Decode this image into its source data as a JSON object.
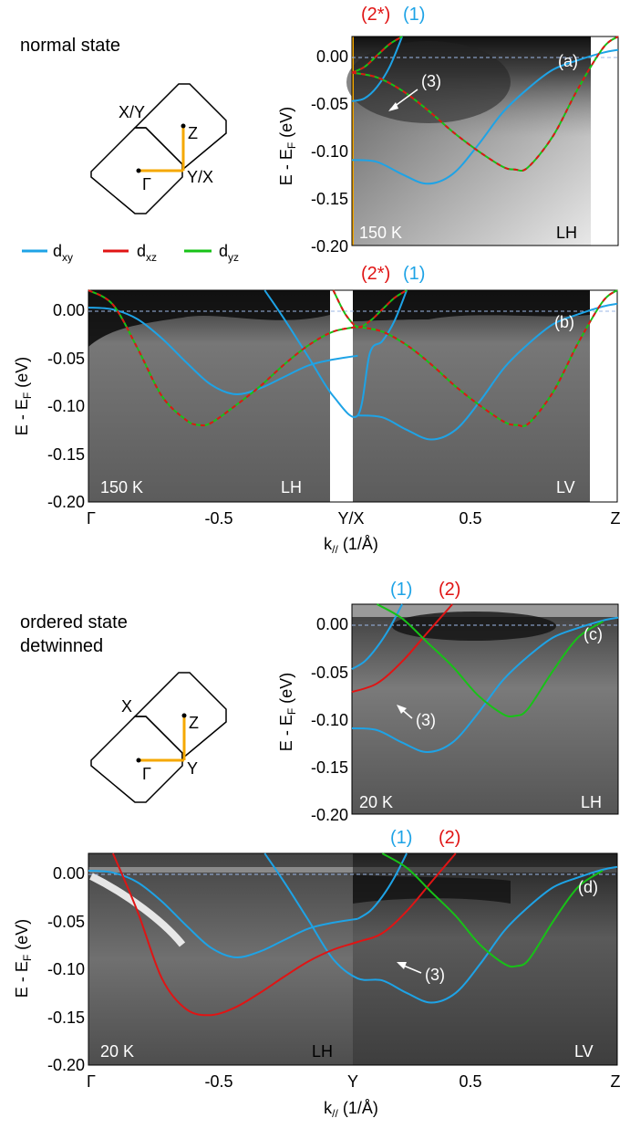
{
  "figure": {
    "normal_title": "normal state",
    "ordered_title_1": "ordered state",
    "ordered_title_2": "detwinned",
    "colors": {
      "dxy": "#1ea3e6",
      "dxz": "#e01414",
      "dyz": "#17c217",
      "fermi": "#9bb7e6",
      "bz_path": "#f5a800"
    },
    "legend": [
      {
        "label": "d",
        "sub": "xy",
        "color": "#1ea3e6"
      },
      {
        "label": "d",
        "sub": "xz",
        "color": "#e01414"
      },
      {
        "label": "d",
        "sub": "yz",
        "color": "#17c217"
      }
    ],
    "bz_normal": {
      "corner": "X/Y",
      "center": "Γ",
      "edge": "Y/X",
      "top": "Z"
    },
    "bz_ordered": {
      "corner": "X",
      "center": "Γ",
      "edge": "Y",
      "top": "Z"
    }
  },
  "chart_data": [
    {
      "id": "a",
      "type": "line",
      "panel_label": "(a)",
      "temperature": "150 K",
      "polarization": "LH",
      "ylabel": "E - E_F (eV)",
      "ylim": [
        -0.2,
        0.02
      ],
      "y_ticks": [
        "0.00",
        "-0.05",
        "-0.10",
        "-0.15",
        "-0.20"
      ],
      "xlim": [
        0,
        1.06
      ],
      "band_labels": [
        {
          "text": "(2*)",
          "color": "#e01414"
        },
        {
          "text": "(1)",
          "color": "#1ea3e6"
        }
      ],
      "annotation": "(3)",
      "series": [
        {
          "name": "dxy",
          "x": [
            0,
            0.05,
            0.1,
            0.15,
            0.2
          ],
          "y": [
            -0.048,
            -0.045,
            -0.033,
            -0.012,
            0.02
          ]
        },
        {
          "name": "dxy",
          "x": [
            0,
            0.1,
            0.2,
            0.3,
            0.4,
            0.5,
            0.6,
            0.7,
            0.8,
            0.9,
            1.0,
            1.06
          ],
          "y": [
            -0.11,
            -0.112,
            -0.125,
            -0.135,
            -0.125,
            -0.095,
            -0.06,
            -0.035,
            -0.015,
            -0.005,
            0.003,
            0.006
          ]
        },
        {
          "name": "dxz/dyz",
          "x": [
            0,
            0.1,
            0.2,
            0.3,
            0.4,
            0.5,
            0.6,
            0.65,
            0.7,
            0.8,
            0.9,
            1.0,
            1.06
          ],
          "y": [
            -0.018,
            -0.023,
            -0.037,
            -0.057,
            -0.08,
            -0.1,
            -0.117,
            -0.12,
            -0.118,
            -0.085,
            -0.035,
            0.008,
            0.02
          ]
        },
        {
          "name": "dxz/dyz",
          "x": [
            0,
            0.05,
            0.1,
            0.15,
            0.2
          ],
          "y": [
            -0.018,
            -0.012,
            0.0,
            0.012,
            0.02
          ]
        }
      ]
    },
    {
      "id": "b",
      "type": "line",
      "panel_label": "(b)",
      "temperature": "150 K",
      "polarization_left": "LH",
      "polarization_right": "LV",
      "ylabel": "E - E_F (eV)",
      "xlabel": "k// (1/Å)",
      "xlim": [
        -1.1,
        1.06
      ],
      "ylim": [
        -0.2,
        0.02
      ],
      "y_ticks": [
        "0.00",
        "-0.05",
        "-0.10",
        "-0.15",
        "-0.20"
      ],
      "x_ticks": [
        "Γ",
        "-0.5",
        "Y/X",
        "0.5",
        "Z"
      ],
      "band_labels": [
        {
          "text": "(2*)",
          "color": "#e01414"
        },
        {
          "text": "(1)",
          "color": "#1ea3e6"
        }
      ],
      "series": [
        {
          "name": "dxy",
          "x": [
            -1.1,
            -1.0,
            -0.9,
            -0.8,
            -0.7,
            -0.6,
            -0.5,
            -0.4,
            -0.3,
            -0.2,
            -0.1,
            0.0
          ],
          "y": [
            0.002,
            0.0,
            -0.01,
            -0.03,
            -0.055,
            -0.078,
            -0.088,
            -0.082,
            -0.07,
            -0.058,
            -0.052,
            -0.048
          ]
        },
        {
          "name": "dxy",
          "x": [
            0.0,
            0.1,
            0.2,
            0.3,
            0.4,
            0.5,
            0.6,
            0.7,
            0.8,
            0.9,
            1.0,
            1.06
          ],
          "y": [
            -0.11,
            -0.112,
            -0.125,
            -0.135,
            -0.125,
            -0.095,
            -0.06,
            -0.035,
            -0.015,
            -0.005,
            0.003,
            0.006
          ]
        },
        {
          "name": "dxy",
          "x": [
            -0.38,
            -0.3,
            -0.2,
            -0.1,
            0.0,
            0.05,
            0.1,
            0.15,
            0.2
          ],
          "y": [
            0.02,
            -0.01,
            -0.05,
            -0.09,
            -0.11,
            -0.045,
            -0.033,
            -0.012,
            0.02
          ]
        },
        {
          "name": "dxz/dyz",
          "x": [
            -1.1,
            -1.0,
            -0.9,
            -0.8,
            -0.7,
            -0.65,
            -0.6,
            -0.5,
            -0.4,
            -0.3,
            -0.2,
            -0.1,
            0.0
          ],
          "y": [
            0.02,
            0.005,
            -0.04,
            -0.09,
            -0.115,
            -0.12,
            -0.118,
            -0.1,
            -0.08,
            -0.057,
            -0.037,
            -0.023,
            -0.018
          ]
        },
        {
          "name": "dxz/dyz",
          "x": [
            0.0,
            0.1,
            0.2,
            0.3,
            0.4,
            0.5,
            0.6,
            0.65,
            0.7,
            0.8,
            0.9,
            1.0,
            1.06
          ],
          "y": [
            -0.018,
            -0.023,
            -0.037,
            -0.057,
            -0.08,
            -0.1,
            -0.117,
            -0.12,
            -0.118,
            -0.085,
            -0.035,
            0.008,
            0.02
          ]
        },
        {
          "name": "dxz/dyz",
          "x": [
            -0.1,
            -0.05,
            0.0,
            0.05,
            0.1,
            0.15,
            0.2
          ],
          "y": [
            0.02,
            -0.005,
            -0.018,
            -0.012,
            0.0,
            0.012,
            0.02
          ]
        }
      ]
    },
    {
      "id": "c",
      "type": "line",
      "panel_label": "(c)",
      "temperature": "20 K",
      "polarization": "LH",
      "ylabel": "E - E_F (eV)",
      "xlim": [
        0,
        1.06
      ],
      "ylim": [
        -0.2,
        0.02
      ],
      "y_ticks": [
        "0.00",
        "-0.05",
        "-0.10",
        "-0.15",
        "-0.20"
      ],
      "band_labels": [
        {
          "text": "(1)",
          "color": "#1ea3e6"
        },
        {
          "text": "(2)",
          "color": "#e01414"
        }
      ],
      "annotation": "(3)",
      "series": [
        {
          "name": "dxy",
          "x": [
            0,
            0.05,
            0.1,
            0.15,
            0.2
          ],
          "y": [
            -0.048,
            -0.04,
            -0.025,
            -0.005,
            0.02
          ]
        },
        {
          "name": "dxy",
          "x": [
            0,
            0.1,
            0.2,
            0.3,
            0.4,
            0.5,
            0.6,
            0.7,
            0.8,
            0.9,
            1.0,
            1.06
          ],
          "y": [
            -0.11,
            -0.112,
            -0.125,
            -0.135,
            -0.125,
            -0.095,
            -0.06,
            -0.035,
            -0.015,
            -0.005,
            0.003,
            0.006
          ]
        },
        {
          "name": "dxz",
          "x": [
            0,
            0.1,
            0.2,
            0.3,
            0.4
          ],
          "y": [
            -0.072,
            -0.063,
            -0.04,
            -0.01,
            0.02
          ]
        },
        {
          "name": "dyz",
          "x": [
            0.1,
            0.2,
            0.3,
            0.4,
            0.5,
            0.6,
            0.65,
            0.7,
            0.8,
            0.9,
            1.0
          ],
          "y": [
            0.02,
            0.005,
            -0.02,
            -0.045,
            -0.075,
            -0.095,
            -0.097,
            -0.09,
            -0.05,
            -0.015,
            0.002
          ]
        }
      ]
    },
    {
      "id": "d",
      "type": "line",
      "panel_label": "(d)",
      "temperature": "20 K",
      "polarization_left": "LH",
      "polarization_right": "LV",
      "ylabel": "E - E_F (eV)",
      "xlabel": "k// (1/Å)",
      "xlim": [
        -1.1,
        1.06
      ],
      "ylim": [
        -0.2,
        0.02
      ],
      "y_ticks": [
        "0.00",
        "-0.05",
        "-0.10",
        "-0.15",
        "-0.20"
      ],
      "x_ticks": [
        "Γ",
        "-0.5",
        "Y",
        "0.5",
        "Z"
      ],
      "band_labels": [
        {
          "text": "(1)",
          "color": "#1ea3e6"
        },
        {
          "text": "(2)",
          "color": "#e01414"
        }
      ],
      "annotation": "(3)",
      "series": [
        {
          "name": "dxy",
          "x": [
            -1.1,
            -1.0,
            -0.9,
            -0.8,
            -0.7,
            -0.6,
            -0.5,
            -0.4,
            -0.3,
            -0.2,
            -0.1,
            0.0
          ],
          "y": [
            0.002,
            0.0,
            -0.01,
            -0.03,
            -0.055,
            -0.078,
            -0.088,
            -0.082,
            -0.07,
            -0.058,
            -0.052,
            -0.048
          ]
        },
        {
          "name": "dxy",
          "x": [
            0.0,
            0.05,
            0.1,
            0.15,
            0.2
          ],
          "y": [
            -0.048,
            -0.04,
            -0.025,
            -0.005,
            0.02
          ]
        },
        {
          "name": "dxy",
          "x": [
            -0.38,
            -0.3,
            -0.2,
            -0.1,
            0.0,
            0.1,
            0.2,
            0.3,
            0.4,
            0.5,
            0.6,
            0.7,
            0.8,
            0.9,
            1.0,
            1.06
          ],
          "y": [
            0.02,
            -0.01,
            -0.05,
            -0.09,
            -0.11,
            -0.112,
            -0.125,
            -0.135,
            -0.125,
            -0.095,
            -0.06,
            -0.035,
            -0.015,
            -0.005,
            0.003,
            0.006
          ]
        },
        {
          "name": "dxz",
          "x": [
            -1.0,
            -0.9,
            -0.8,
            -0.7,
            -0.6,
            -0.5,
            -0.4,
            -0.3,
            -0.2,
            -0.1,
            0.0,
            0.1,
            0.2,
            0.3,
            0.4
          ],
          "y": [
            0.02,
            -0.04,
            -0.11,
            -0.142,
            -0.148,
            -0.14,
            -0.125,
            -0.108,
            -0.092,
            -0.08,
            -0.072,
            -0.063,
            -0.04,
            -0.01,
            0.02
          ]
        },
        {
          "name": "dyz",
          "x": [
            0.1,
            0.2,
            0.3,
            0.4,
            0.5,
            0.6,
            0.65,
            0.7,
            0.8,
            0.9,
            1.0
          ],
          "y": [
            0.02,
            0.005,
            -0.02,
            -0.045,
            -0.075,
            -0.095,
            -0.097,
            -0.09,
            -0.05,
            -0.015,
            0.002
          ]
        }
      ]
    }
  ]
}
